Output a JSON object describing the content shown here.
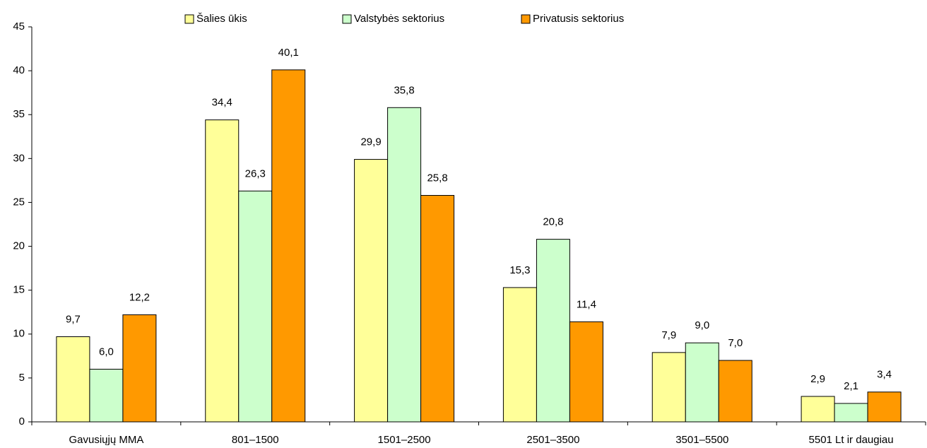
{
  "chart_data": {
    "type": "bar",
    "categories": [
      "Gavusiųjų MMA",
      "801–1500",
      "1501–2500",
      "2501–3500",
      "3501–5500",
      "5501 Lt ir daugiau"
    ],
    "series": [
      {
        "name": "Šalies ūkis",
        "color": "#ffff99",
        "values": [
          9.7,
          34.4,
          29.9,
          15.3,
          7.9,
          2.9
        ],
        "value_labels": [
          "9,7",
          "34,4",
          "29,9",
          "15,3",
          "7,9",
          "2,9"
        ]
      },
      {
        "name": "Valstybės sektorius",
        "color": "#ccffcc",
        "values": [
          6.0,
          26.3,
          35.8,
          20.8,
          9.0,
          2.1
        ],
        "value_labels": [
          "6,0",
          "26,3",
          "35,8",
          "20,8",
          "9,0",
          "2,1"
        ]
      },
      {
        "name": "Privatusis sektorius",
        "color": "#ff9900",
        "values": [
          12.2,
          40.1,
          25.8,
          11.4,
          7.0,
          3.4
        ],
        "value_labels": [
          "12,2",
          "40,1",
          "25,8",
          "11,4",
          "7,0",
          "3,4"
        ]
      }
    ],
    "ylim": [
      0,
      45
    ],
    "yticks": [
      0,
      5,
      10,
      15,
      20,
      25,
      30,
      35,
      40,
      45
    ],
    "legend": "top"
  }
}
